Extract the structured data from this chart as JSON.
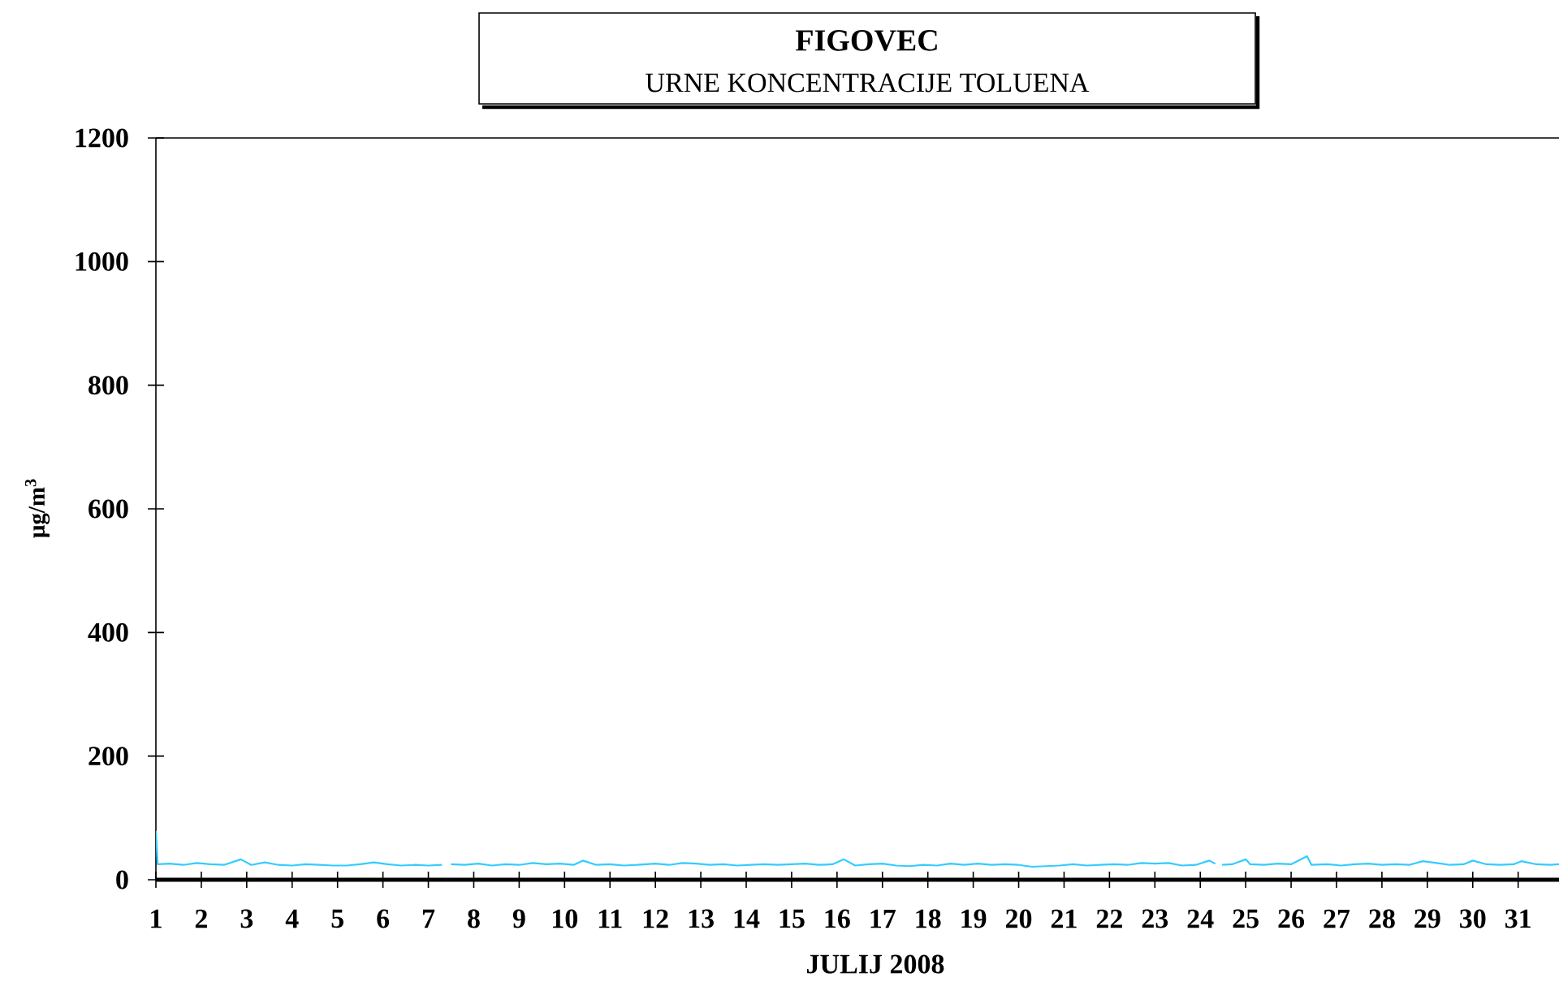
{
  "chart_data": {
    "type": "line",
    "title": "FIGOVEC",
    "subtitle": "URNE KONCENTRACIJE TOLUENA",
    "xlabel": "JULIJ 2008",
    "ylabel": "μg/m$^{3}$",
    "color": "#33ccff",
    "x": [
      1.0,
      1.04,
      1.3,
      1.6,
      1.9,
      2.2,
      2.5,
      2.87,
      3.1,
      3.4,
      3.7,
      4.0,
      4.3,
      4.6,
      4.9,
      5.2,
      5.5,
      5.8,
      6.1,
      6.4,
      6.7,
      7.0,
      7.3,
      7.42,
      7.5,
      7.8,
      8.1,
      8.4,
      8.7,
      9.0,
      9.3,
      9.6,
      9.9,
      10.2,
      10.4,
      10.7,
      11.0,
      11.3,
      11.6,
      12.0,
      12.3,
      12.6,
      12.9,
      13.2,
      13.5,
      13.8,
      14.1,
      14.4,
      14.7,
      15.0,
      15.3,
      15.6,
      15.9,
      16.15,
      16.4,
      16.7,
      17.0,
      17.3,
      17.6,
      17.9,
      18.2,
      18.5,
      18.8,
      19.1,
      19.4,
      19.7,
      20.0,
      20.3,
      20.6,
      20.9,
      21.2,
      21.5,
      21.8,
      22.1,
      22.4,
      22.7,
      23.0,
      23.3,
      23.6,
      23.9,
      24.2,
      24.33,
      24.4,
      24.48,
      24.7,
      25.0,
      25.1,
      25.4,
      25.7,
      26.0,
      26.35,
      26.45,
      26.8,
      27.1,
      27.4,
      27.7,
      28.0,
      28.3,
      28.6,
      28.9,
      29.2,
      29.5,
      29.8,
      30.0,
      30.3,
      30.6,
      30.9,
      31.07,
      31.4,
      31.7,
      31.9
    ],
    "values": [
      79,
      25,
      26,
      24,
      27,
      25,
      24,
      33,
      24,
      28,
      24,
      23,
      25,
      24,
      23,
      23,
      25,
      28,
      25,
      23,
      24,
      23,
      24,
      null,
      25,
      24,
      26,
      23,
      25,
      24,
      27,
      25,
      26,
      24,
      31,
      24,
      25,
      23,
      24,
      26,
      24,
      27,
      26,
      24,
      25,
      23,
      24,
      25,
      24,
      25,
      26,
      24,
      25,
      33,
      23,
      25,
      26,
      23,
      22,
      24,
      23,
      26,
      24,
      26,
      24,
      25,
      24,
      21,
      22,
      23,
      25,
      23,
      24,
      25,
      24,
      27,
      26,
      27,
      23,
      24,
      31,
      26,
      null,
      24,
      25,
      33,
      25,
      24,
      26,
      25,
      38,
      24,
      25,
      23,
      25,
      26,
      24,
      25,
      24,
      30,
      27,
      24,
      25,
      31,
      25,
      24,
      25,
      30,
      25,
      24,
      25
    ],
    "xlim": [
      1,
      31.9
    ],
    "xticks": [
      1,
      2,
      3,
      4,
      5,
      6,
      7,
      8,
      9,
      10,
      11,
      12,
      13,
      14,
      15,
      16,
      17,
      18,
      19,
      20,
      21,
      22,
      23,
      24,
      25,
      26,
      27,
      28,
      29,
      30,
      31
    ],
    "ylim": [
      0,
      1200
    ],
    "yticks": [
      0,
      200,
      400,
      600,
      800,
      1000,
      1200
    ]
  }
}
